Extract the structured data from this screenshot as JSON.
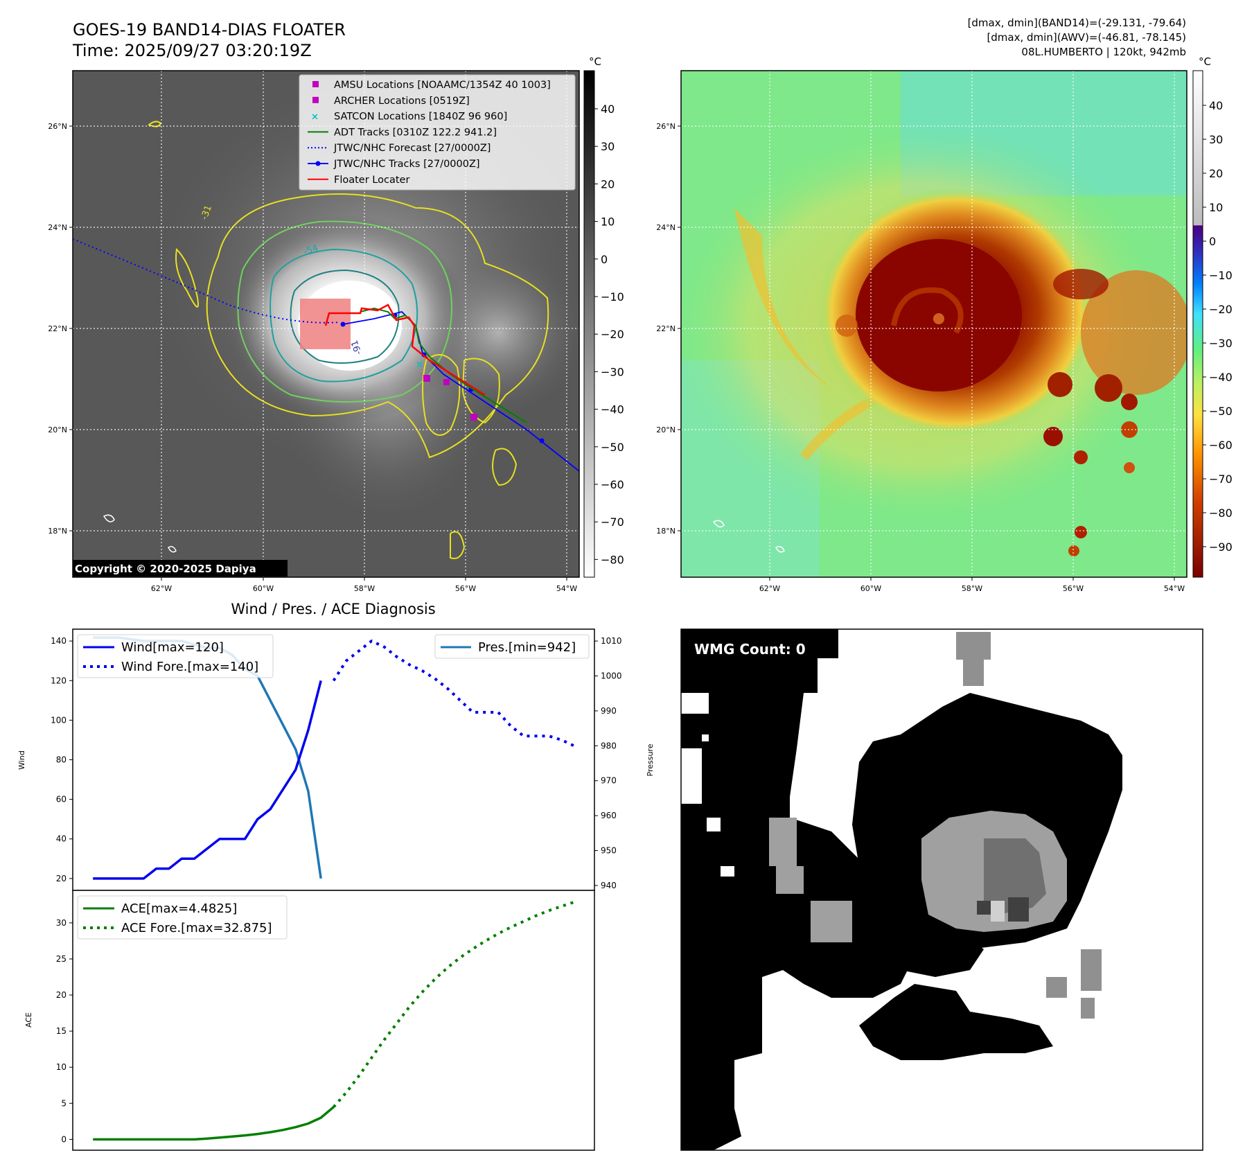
{
  "header": {
    "title_line1": "GOES-19 BAND14-DIAS FLOATER",
    "title_line2": "Time: 2025/09/27 03:20:19Z",
    "stats_line1": "[dmax, dmin](BAND14)=(-29.131, -79.64)",
    "stats_line2": "[dmax, dmin](AWV)=(-46.81, -78.145)",
    "stats_line3": "08L.HUMBERTO | 120kt, 942mb",
    "copyright": "Copyright © 2020-2025 Dapiya"
  },
  "colors": {
    "wind": "#0000ee",
    "pressure": "#1f77b4",
    "ace": "#007f00",
    "floater": "#ff0000",
    "adt": "#008000",
    "jtwc": "#0000ff",
    "amsu": "#c000c0",
    "satcon": "#00c0c0"
  },
  "maps": {
    "lat_ticks": [
      "26°N",
      "24°N",
      "22°N",
      "20°N",
      "18°N"
    ],
    "lon_ticks": [
      "62°W",
      "60°W",
      "58°W",
      "56°W",
      "54°W"
    ],
    "unit": "°C",
    "ir_colorbar_ticks": [
      "40",
      "30",
      "20",
      "10",
      "0",
      "−10",
      "−20",
      "−30",
      "−40",
      "−50",
      "−60",
      "−70",
      "−80"
    ],
    "awv_colorbar_ticks": [
      "40",
      "30",
      "20",
      "10",
      "0",
      "−10",
      "−20",
      "−30",
      "−40",
      "−50",
      "−60",
      "−70",
      "−80",
      "−90"
    ],
    "contour_labels": [
      "-54",
      "-31",
      "-91"
    ],
    "legend": [
      {
        "label": "AMSU Locations [NOAAMC/1354Z 40 1003]",
        "kind": "square",
        "color": "#c000c0"
      },
      {
        "label": "ARCHER Locations [0519Z]",
        "kind": "square",
        "color": "#c000c0"
      },
      {
        "label": "SATCON Locations [1840Z 96 960]",
        "kind": "cross",
        "color": "#00c0c0"
      },
      {
        "label": "ADT Tracks [0310Z 122.2 941.2]",
        "kind": "line",
        "color": "#008000"
      },
      {
        "label": "JTWC/NHC Forecast [27/0000Z]",
        "kind": "dotted",
        "color": "#0000ff"
      },
      {
        "label": "JTWC/NHC Tracks [27/0000Z]",
        "kind": "linedot",
        "color": "#0000ff"
      },
      {
        "label": "Floater Locater",
        "kind": "line",
        "color": "#ff0000"
      }
    ]
  },
  "chart_data": [
    {
      "type": "line",
      "title": "Wind / Pres. / ACE Diagnosis",
      "xlabel": "",
      "ylabel": "Wind",
      "y2label": "Pressure",
      "ylim": [
        14,
        146
      ],
      "y2lim": [
        938.6,
        1013.4
      ],
      "yticks": [
        20,
        40,
        60,
        80,
        100,
        120,
        140
      ],
      "y2ticks": [
        940,
        950,
        960,
        970,
        980,
        990,
        1000,
        1010
      ],
      "x": [
        0,
        1,
        2,
        3,
        4,
        5,
        6,
        7,
        8,
        9,
        10,
        11,
        12,
        13,
        14,
        15,
        16,
        17,
        18,
        19
      ],
      "x_forecast": [
        19,
        20,
        21,
        22,
        23,
        24,
        25,
        26,
        27,
        28,
        29,
        30,
        31,
        32,
        33,
        34,
        35,
        36,
        37,
        38
      ],
      "legend_left": "upper-left",
      "legend_right": "upper-right",
      "series": [
        {
          "name": "Wind[max=120]",
          "axis": "left",
          "style": "solid",
          "values": [
            20,
            20,
            20,
            20,
            20,
            25,
            25,
            30,
            30,
            35,
            40,
            40,
            40,
            50,
            55,
            65,
            75,
            95,
            120,
            null
          ]
        },
        {
          "name": "Wind Fore.[max=140]",
          "axis": "left",
          "style": "dotted",
          "values": [
            120,
            130,
            135,
            140,
            137,
            132,
            128,
            125,
            121,
            116,
            110,
            104,
            104,
            104,
            97,
            92,
            92,
            92,
            90,
            87
          ]
        },
        {
          "name": "Pres.[min=942]",
          "axis": "right",
          "style": "solid",
          "values": [
            1011,
            1011,
            1011,
            1010.5,
            1010,
            1010,
            1010,
            1010,
            1009,
            1008,
            1008,
            1006,
            1002,
            1000,
            993,
            986,
            979,
            967,
            942,
            null
          ]
        }
      ]
    },
    {
      "type": "line",
      "xlabel": "",
      "ylabel": "ACE",
      "ylim": [
        -1.5,
        34.5
      ],
      "yticks": [
        0,
        5,
        10,
        15,
        20,
        25,
        30
      ],
      "legend": "upper-left",
      "series": [
        {
          "name": "ACE[max=4.4825]",
          "style": "solid",
          "values": [
            0,
            0,
            0,
            0,
            0,
            0,
            0,
            0,
            0,
            0.1,
            0.25,
            0.4,
            0.55,
            0.75,
            1.0,
            1.3,
            1.7,
            2.2,
            3.0,
            4.48
          ]
        },
        {
          "name": "ACE Fore.[max=32.875]",
          "style": "dotted",
          "values": [
            4.48,
            6.5,
            8.8,
            11.3,
            13.8,
            16.1,
            18.4,
            20.4,
            22.2,
            23.8,
            25.2,
            26.4,
            27.5,
            28.5,
            29.4,
            30.2,
            31.0,
            31.7,
            32.3,
            32.875
          ]
        }
      ]
    }
  ],
  "wmg": {
    "label": "WMG Count: 0"
  }
}
